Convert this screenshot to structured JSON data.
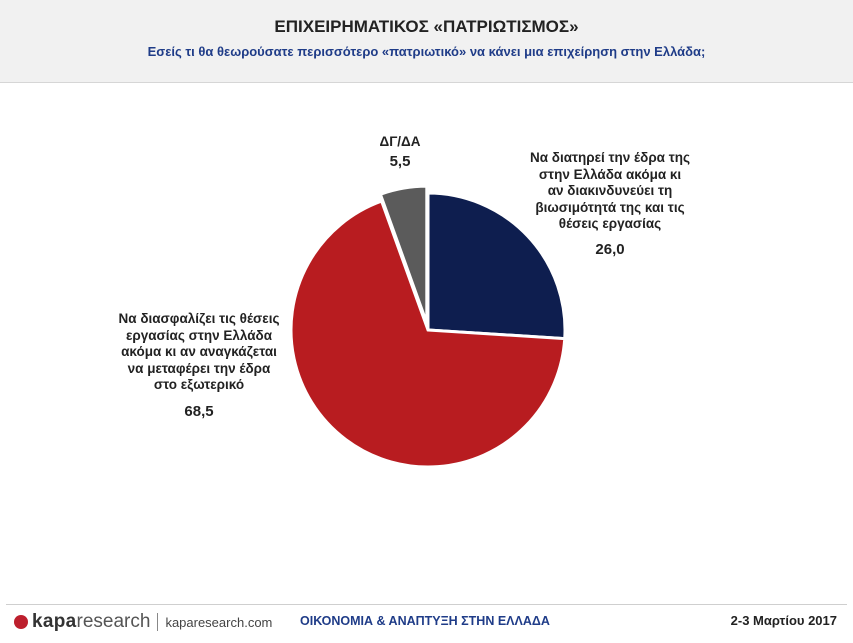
{
  "header": {
    "title": "ΕΠΙΧΕΙΡΗΜΑΤΙΚΟΣ «ΠΑΤΡΙΩΤΙΣΜΟΣ»",
    "subtitle": "Εσείς τι θα θεωρούσατε περισσότερο «πατριωτικό» να κάνει μια επιχείρηση στην Ελλάδα;"
  },
  "chart_data": {
    "type": "pie",
    "slices": [
      {
        "label": "Να διατηρεί την έδρα της\nστην Ελλάδα ακόμα κι\nαν διακινδυνεύει τη\nβιωσιμότητά της και τις\nθέσεις εργασίας",
        "value": 26.0,
        "display": "26,0",
        "color": "#0e1e4f"
      },
      {
        "label": "Να διασφαλίζει τις θέσεις\nεργασίας στην Ελλάδα\nακόμα κι αν αναγκάζεται\nνα μεταφέρει την έδρα\nστο εξωτερικό",
        "value": 68.5,
        "display": "68,5",
        "color": "#b81c20"
      },
      {
        "label": "ΔΓ/ΔΑ",
        "value": 5.5,
        "display": "5,5",
        "color": "#5b5b5b"
      }
    ]
  },
  "footer": {
    "logo_bold": "kapa",
    "logo_light": "research",
    "url": "kaparesearch.com",
    "section": "ΟΙΚΟΝΟΜΙΑ & ΑΝΑΠΤΥΞΗ ΣΤΗΝ ΕΛΛΑΔΑ",
    "date": "2-3 Μαρτίου 2017"
  }
}
